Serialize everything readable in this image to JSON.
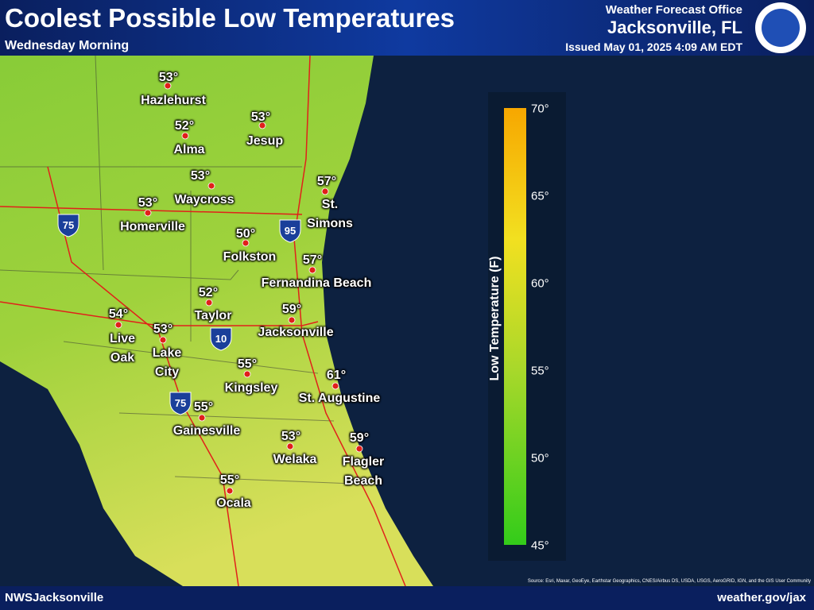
{
  "header": {
    "title": "Coolest Possible Low Temperatures",
    "subtitle": "Wednesday Morning",
    "office": "Weather Forecast Office",
    "office_city": "Jacksonville, FL",
    "issued": "Issued May 01, 2025 4:09 AM EDT"
  },
  "cities": [
    {
      "temp": "53°",
      "name": "Hazlehurst"
    },
    {
      "temp": "52°",
      "name": "Alma"
    },
    {
      "temp": "53°",
      "name": "Jesup"
    },
    {
      "temp": "53°",
      "name": "Waycross"
    },
    {
      "temp": "53°",
      "name": "Homerville"
    },
    {
      "temp": "57°",
      "name": "St. Simons"
    },
    {
      "temp": "50°",
      "name": "Folkston"
    },
    {
      "temp": "57°",
      "name": "Fernandina Beach"
    },
    {
      "temp": "52°",
      "name": "Taylor"
    },
    {
      "temp": "59°",
      "name": "Jacksonville"
    },
    {
      "temp": "54°",
      "name": "Live Oak"
    },
    {
      "temp": "53°",
      "name": "Lake City"
    },
    {
      "temp": "55°",
      "name": "Kingsley"
    },
    {
      "temp": "61°",
      "name": "St. Augustine"
    },
    {
      "temp": "55°",
      "name": "Gainesville"
    },
    {
      "temp": "53°",
      "name": "Welaka"
    },
    {
      "temp": "59°",
      "name": "Flagler Beach"
    },
    {
      "temp": "55°",
      "name": "Ocala"
    }
  ],
  "shields": [
    "75",
    "95",
    "10",
    "75"
  ],
  "legend": {
    "title": "Low Temperature (F)",
    "ticks": [
      "70°",
      "65°",
      "60°",
      "55°",
      "50°",
      "45°"
    ]
  },
  "footer": {
    "left": "NWSJacksonville",
    "right": "weather.gov/jax",
    "source": "Source: Esri, Maxar, GeoEye, Earthstar Geographics, CNES/Airbus DS, USDA, USGS, AeroGRID, IGN, and the GIS User Community"
  }
}
